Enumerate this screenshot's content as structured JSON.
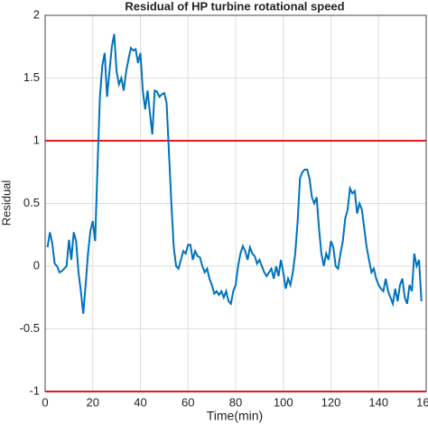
{
  "chart_data": {
    "type": "line",
    "title": "Residual of HP turbine rotational speed",
    "xlabel": "Time(min)",
    "ylabel": "Residual",
    "x": [
      1,
      2,
      3,
      4,
      5,
      6,
      7,
      8,
      9,
      10,
      11,
      12,
      13,
      14,
      15,
      16,
      17,
      18,
      19,
      20,
      21,
      22,
      23,
      24,
      25,
      26,
      27,
      28,
      29,
      30,
      31,
      32,
      33,
      34,
      35,
      36,
      37,
      38,
      39,
      40,
      41,
      42,
      43,
      44,
      45,
      46,
      47,
      48,
      49,
      50,
      51,
      52,
      53,
      54,
      55,
      56,
      57,
      58,
      59,
      60,
      61,
      62,
      63,
      64,
      65,
      66,
      67,
      68,
      69,
      70,
      71,
      72,
      73,
      74,
      75,
      76,
      77,
      78,
      79,
      80,
      81,
      82,
      83,
      84,
      85,
      86,
      87,
      88,
      89,
      90,
      91,
      92,
      93,
      94,
      95,
      96,
      97,
      98,
      99,
      100,
      101,
      102,
      103,
      104,
      105,
      106,
      107,
      108,
      109,
      110,
      111,
      112,
      113,
      114,
      115,
      116,
      117,
      118,
      119,
      120,
      121,
      122,
      123,
      124,
      125,
      126,
      127,
      128,
      129,
      130,
      131,
      132,
      133,
      134,
      135,
      136,
      137,
      138,
      139,
      140,
      141,
      142,
      143,
      144,
      145,
      146,
      147,
      148,
      149,
      150,
      151,
      152,
      153,
      154,
      155,
      156,
      157,
      158
    ],
    "series": [
      {
        "color": "#0072bd",
        "values": [
          0.15,
          0.27,
          0.18,
          0.02,
          0.0,
          -0.05,
          -0.04,
          -0.02,
          0.0,
          0.21,
          0.05,
          0.27,
          0.2,
          -0.05,
          -0.2,
          -0.38,
          -0.15,
          0.1,
          0.28,
          0.36,
          0.2,
          0.8,
          1.35,
          1.6,
          1.7,
          1.35,
          1.55,
          1.75,
          1.85,
          1.55,
          1.45,
          1.5,
          1.4,
          1.55,
          1.65,
          1.74,
          1.72,
          1.73,
          1.62,
          1.7,
          1.4,
          1.25,
          1.4,
          1.22,
          1.05,
          1.4,
          1.39,
          1.35,
          1.37,
          1.38,
          1.3,
          0.9,
          0.5,
          0.15,
          0.0,
          -0.02,
          0.05,
          0.12,
          0.1,
          0.17,
          0.17,
          0.05,
          0.12,
          0.08,
          0.07,
          0.0,
          -0.05,
          -0.02,
          -0.1,
          -0.15,
          -0.22,
          -0.2,
          -0.23,
          -0.2,
          -0.25,
          -0.2,
          -0.28,
          -0.3,
          -0.2,
          -0.15,
          0.0,
          0.1,
          0.16,
          0.12,
          0.05,
          0.15,
          0.1,
          0.08,
          0.02,
          0.05,
          0.0,
          -0.05,
          -0.08,
          -0.05,
          -0.02,
          -0.1,
          0.0,
          -0.08,
          0.05,
          -0.05,
          -0.18,
          -0.1,
          -0.15,
          -0.05,
          0.1,
          0.35,
          0.7,
          0.75,
          0.77,
          0.77,
          0.7,
          0.55,
          0.5,
          0.55,
          0.3,
          0.1,
          0.0,
          0.1,
          0.05,
          0.2,
          0.15,
          0.0,
          -0.02,
          0.1,
          0.2,
          0.38,
          0.45,
          0.62,
          0.58,
          0.6,
          0.42,
          0.5,
          0.45,
          0.3,
          0.15,
          0.05,
          -0.05,
          -0.02,
          -0.1,
          -0.15,
          -0.18,
          -0.2,
          -0.1,
          -0.2,
          -0.25,
          -0.3,
          -0.18,
          -0.28,
          -0.15,
          -0.1,
          -0.25,
          -0.3,
          -0.15,
          -0.2,
          0.1,
          0.0,
          0.05,
          -0.28
        ]
      }
    ],
    "thresholds": [
      1,
      -1
    ],
    "threshold_color": "#e41a1c",
    "xlim": [
      0,
      160
    ],
    "xticks": [
      0,
      20,
      40,
      60,
      80,
      100,
      120,
      140,
      160
    ],
    "ylim": [
      -1,
      2
    ],
    "yticks": [
      -1,
      -0.5,
      0,
      0.5,
      1,
      1.5,
      2
    ],
    "grid": true
  }
}
